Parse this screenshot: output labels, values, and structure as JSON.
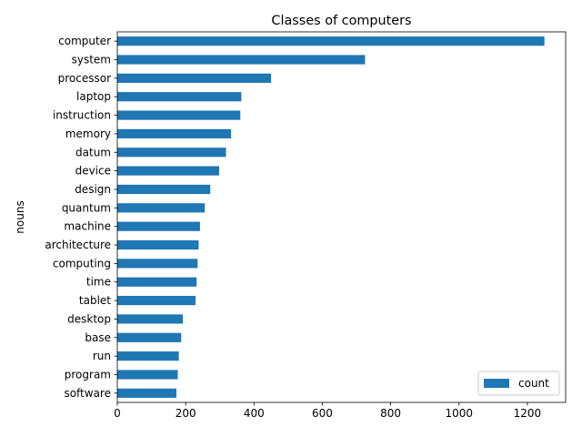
{
  "chart_data": {
    "type": "bar",
    "orientation": "horizontal",
    "title": "Classes of computers",
    "xlabel": "",
    "ylabel": "nouns",
    "xlim": [
      0,
      1312
    ],
    "xticks": [
      0,
      200,
      400,
      600,
      800,
      1000,
      1200
    ],
    "grid": false,
    "legend_position": "lower-right",
    "bar_color": "#1f77b4",
    "categories": [
      "computer",
      "system",
      "processor",
      "laptop",
      "instruction",
      "memory",
      "datum",
      "device",
      "design",
      "quantum",
      "machine",
      "architecture",
      "computing",
      "time",
      "tablet",
      "desktop",
      "base",
      "run",
      "program",
      "software"
    ],
    "series": [
      {
        "name": "count",
        "values": [
          1250,
          725,
          450,
          363,
          360,
          333,
          318,
          298,
          272,
          256,
          242,
          238,
          235,
          232,
          229,
          192,
          187,
          180,
          177,
          173
        ]
      }
    ]
  }
}
